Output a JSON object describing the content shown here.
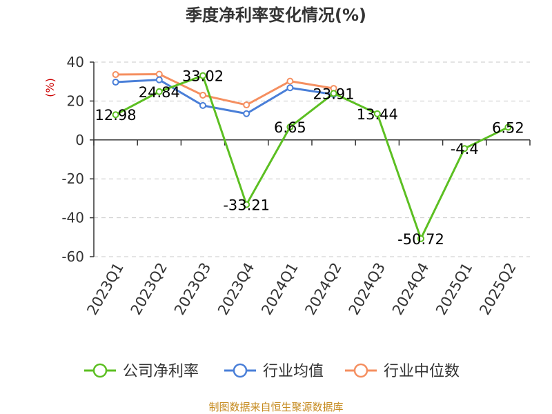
{
  "chart_data": {
    "type": "line",
    "title": "季度净利率变化情况(%)",
    "ylabel": "(%)",
    "categories": [
      "2023Q1",
      "2023Q2",
      "2023Q3",
      "2023Q4",
      "2024Q1",
      "2024Q2",
      "2024Q3",
      "2024Q4",
      "2025Q1",
      "2025Q2"
    ],
    "yticks": [
      "40",
      "20",
      "0",
      "-20",
      "-40",
      "-60"
    ],
    "ylim": [
      -60,
      40
    ],
    "grid": true,
    "legend_position": "bottom",
    "series": [
      {
        "name": "公司净利率",
        "color": "#5cbf22",
        "values": [
          12.98,
          24.84,
          33.02,
          -33.21,
          6.65,
          23.91,
          13.44,
          -50.72,
          -4.4,
          6.52
        ],
        "labels": [
          "12.98",
          "24.84",
          "33.02",
          "-33.21",
          "6.65",
          "23.91",
          "13.44",
          "-50.72",
          "-4.4",
          "6.52"
        ]
      },
      {
        "name": "行业均值",
        "color": "#4a7fd8",
        "values": [
          29.7,
          30.9,
          17.7,
          13.5,
          26.8,
          23.4,
          null,
          null,
          null,
          null
        ]
      },
      {
        "name": "行业中位数",
        "color": "#f58f60",
        "values": [
          33.6,
          33.8,
          23.0,
          18.0,
          30.2,
          26.5,
          null,
          null,
          null,
          null
        ]
      }
    ]
  },
  "footer": {
    "source": "制图数据来自恒生聚源数据库"
  }
}
